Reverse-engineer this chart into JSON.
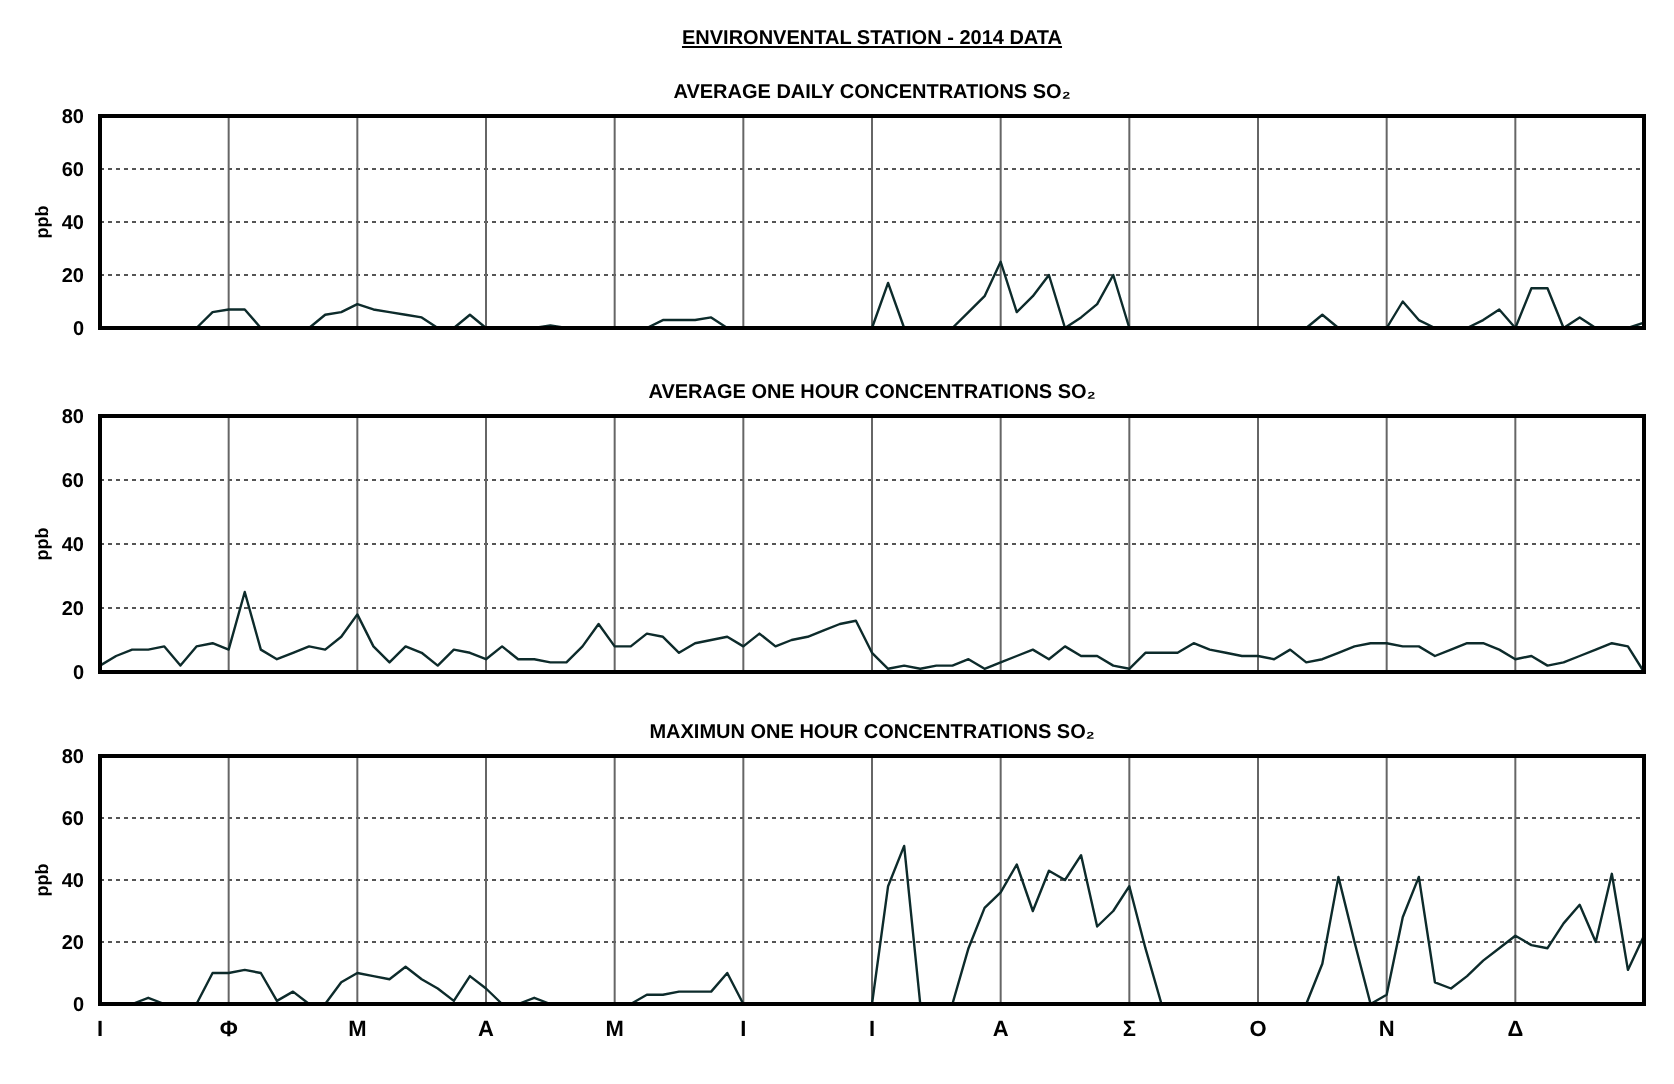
{
  "chart_data": [
    {
      "type": "line",
      "title": "ENVIRONVENTAL STATION - 2014 DATA",
      "subtitle": "AVERAGE DAILY CONCENTRATIONS  SO₂",
      "ylabel": "ppb",
      "categories": [
        null,
        null,
        null,
        null,
        null,
        null,
        null,
        null,
        null,
        null,
        null,
        null,
        null,
        null,
        null,
        null,
        null,
        null,
        null,
        null,
        null,
        null,
        null,
        null,
        null,
        null,
        null,
        null,
        null,
        null,
        null,
        null,
        null,
        null,
        null,
        null,
        null,
        null,
        null,
        null,
        null,
        null,
        null,
        null,
        null,
        null,
        null,
        null,
        null,
        null,
        null,
        null,
        null,
        null,
        null,
        null,
        null,
        null,
        null,
        null,
        null,
        null,
        null,
        null,
        null,
        null,
        null,
        null,
        null,
        null,
        null,
        null,
        null,
        null,
        null,
        null,
        null,
        null,
        null,
        null,
        null,
        null,
        null,
        null,
        null,
        null,
        null,
        null,
        null,
        null,
        null,
        null,
        null,
        null,
        null,
        null,
        null
      ],
      "ylim": [
        0,
        80
      ],
      "yticks": [
        0,
        20,
        40,
        60,
        80
      ],
      "grid": true,
      "tick_labels": "y",
      "marker": "none",
      "line_style": "solid",
      "series": [
        {
          "color": "#0d2b2b",
          "values": [
            0,
            0,
            0,
            0,
            0,
            0,
            0,
            6,
            7,
            7,
            0,
            0,
            0,
            0,
            5,
            6,
            9,
            7,
            6,
            5,
            4,
            0,
            0,
            5,
            0,
            0,
            0,
            0,
            1,
            0,
            0,
            0,
            0,
            0,
            0,
            3,
            3,
            3,
            4,
            0,
            0,
            0,
            0,
            0,
            0,
            0,
            0,
            0,
            0,
            17,
            0,
            0,
            0,
            0,
            6,
            12,
            25,
            6,
            12,
            20,
            0,
            4,
            9,
            20,
            0,
            0,
            0,
            0,
            0,
            0,
            0,
            0,
            0,
            0,
            0,
            0,
            5,
            0,
            0,
            0,
            0,
            10,
            3,
            0,
            0,
            0,
            3,
            7,
            0,
            15,
            15,
            0,
            4,
            0,
            0,
            0,
            2
          ]
        }
      ]
    },
    {
      "type": "line",
      "subtitle": "AVERAGE ONE HOUR CONCENTRATIONS  SO₂",
      "ylabel": "ppb",
      "categories": [
        null,
        null,
        null,
        null,
        null,
        null,
        null,
        null,
        null,
        null,
        null,
        null,
        null,
        null,
        null,
        null,
        null,
        null,
        null,
        null,
        null,
        null,
        null,
        null,
        null,
        null,
        null,
        null,
        null,
        null,
        null,
        null,
        null,
        null,
        null,
        null,
        null,
        null,
        null,
        null,
        null,
        null,
        null,
        null,
        null,
        null,
        null,
        null,
        null,
        null,
        null,
        null,
        null,
        null,
        null,
        null,
        null,
        null,
        null,
        null,
        null,
        null,
        null,
        null,
        null,
        null,
        null,
        null,
        null,
        null,
        null,
        null,
        null,
        null,
        null,
        null,
        null,
        null,
        null,
        null,
        null,
        null,
        null,
        null,
        null,
        null,
        null,
        null,
        null,
        null,
        null,
        null,
        null,
        null,
        null,
        null,
        null
      ],
      "ylim": [
        0,
        80
      ],
      "yticks": [
        0,
        20,
        40,
        60,
        80
      ],
      "grid": true,
      "tick_labels": "y",
      "marker": "none",
      "line_style": "solid",
      "series": [
        {
          "color": "#0d2b2b",
          "values": [
            2,
            5,
            7,
            7,
            8,
            2,
            8,
            9,
            7,
            25,
            7,
            4,
            6,
            8,
            7,
            11,
            18,
            8,
            3,
            8,
            6,
            2,
            7,
            6,
            4,
            8,
            4,
            4,
            3,
            3,
            8,
            15,
            8,
            8,
            12,
            11,
            6,
            9,
            10,
            11,
            8,
            12,
            8,
            10,
            11,
            13,
            15,
            16,
            6,
            1,
            2,
            1,
            2,
            2,
            4,
            1,
            3,
            5,
            7,
            4,
            8,
            5,
            5,
            2,
            1,
            6,
            6,
            6,
            9,
            7,
            6,
            5,
            5,
            4,
            7,
            3,
            4,
            6,
            8,
            9,
            9,
            8,
            8,
            5,
            7,
            9,
            9,
            7,
            4,
            5,
            2,
            3,
            5,
            7,
            9,
            8,
            0
          ]
        }
      ]
    },
    {
      "type": "line",
      "subtitle": "MAXIMUN ONE HOUR CONCENTRATIONS  SO₂",
      "ylabel": "ppb",
      "categories": [
        "Ι",
        null,
        null,
        null,
        null,
        null,
        null,
        null,
        "Φ",
        null,
        null,
        null,
        null,
        null,
        null,
        null,
        "Μ",
        null,
        null,
        null,
        null,
        null,
        null,
        null,
        "Α",
        null,
        null,
        null,
        null,
        null,
        null,
        null,
        "Μ",
        null,
        null,
        null,
        null,
        null,
        null,
        null,
        "Ι",
        null,
        null,
        null,
        null,
        null,
        null,
        null,
        "Ι",
        null,
        null,
        null,
        null,
        null,
        null,
        null,
        "Α",
        null,
        null,
        null,
        null,
        null,
        null,
        null,
        "Σ",
        null,
        null,
        null,
        null,
        null,
        null,
        null,
        "Ο",
        null,
        null,
        null,
        null,
        null,
        null,
        null,
        "Ν",
        null,
        null,
        null,
        null,
        null,
        null,
        null,
        "Δ",
        null,
        null,
        null,
        null,
        null,
        null,
        null,
        null
      ],
      "ylim": [
        0,
        80
      ],
      "yticks": [
        0,
        20,
        40,
        60,
        80
      ],
      "grid": true,
      "marker": "none",
      "line_style": "solid",
      "series": [
        {
          "color": "#0d2b2b",
          "values": [
            0,
            0,
            0,
            2,
            0,
            0,
            0,
            10,
            10,
            11,
            10,
            1,
            4,
            0,
            0,
            7,
            10,
            9,
            8,
            12,
            8,
            5,
            1,
            9,
            5,
            0,
            0,
            2,
            0,
            0,
            0,
            0,
            0,
            0,
            3,
            3,
            4,
            4,
            4,
            10,
            0,
            0,
            0,
            0,
            0,
            0,
            0,
            0,
            0,
            38,
            51,
            0,
            0,
            0,
            18,
            31,
            36,
            45,
            30,
            43,
            40,
            48,
            25,
            30,
            38,
            18,
            0,
            0,
            0,
            0,
            0,
            0,
            0,
            0,
            0,
            0,
            13,
            41,
            20,
            0,
            3,
            28,
            41,
            7,
            5,
            9,
            14,
            18,
            22,
            19,
            18,
            26,
            32,
            20,
            42,
            11,
            22
          ]
        }
      ]
    }
  ]
}
